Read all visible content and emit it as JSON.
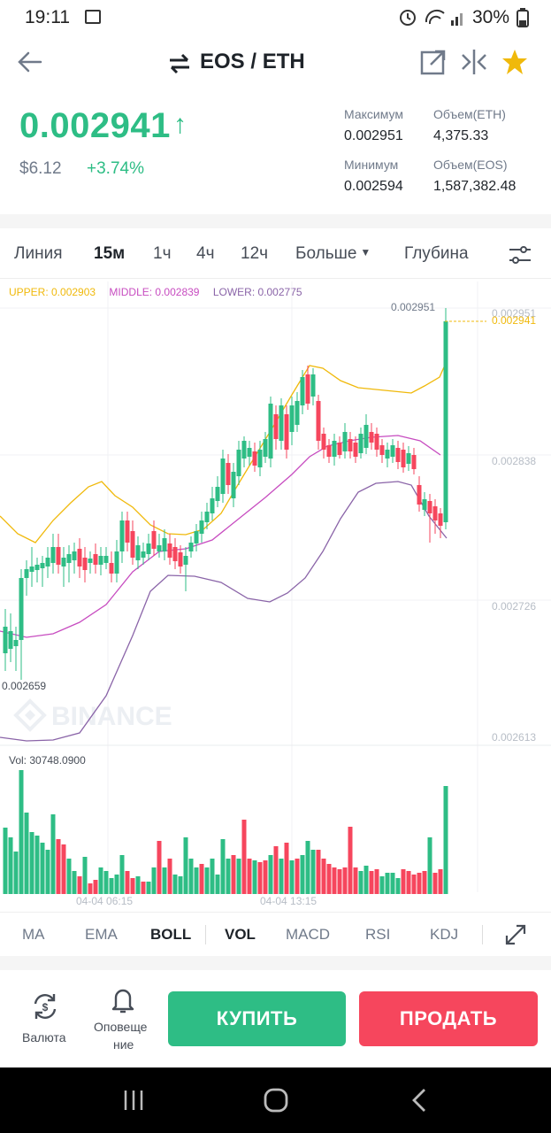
{
  "status_bar": {
    "time": "19:11",
    "battery": "30%"
  },
  "header": {
    "title": "EOS / ETH",
    "swap_icon": "swap-arrows-icon",
    "back_icon": "arrow-left-icon",
    "share_icon": "share-icon",
    "compare_icon": "compare-icon",
    "favorite_icon": "star-icon",
    "favorite_color": "#f0b90b"
  },
  "price": {
    "last": "0.002941",
    "usd": "$6.12",
    "change": "+3.74%",
    "up_color": "#2ebd85",
    "down_color": "#f6465d"
  },
  "stats": [
    {
      "label": "Максимум",
      "value": "0.002951"
    },
    {
      "label": "Объем(ETH)",
      "value": "4,375.33"
    },
    {
      "label": "Минимум",
      "value": "0.002594"
    },
    {
      "label": "Объем(EOS)",
      "value": "1,587,382.48"
    }
  ],
  "tabs": [
    {
      "label": "Линия",
      "active": false
    },
    {
      "label": "15м",
      "active": true
    },
    {
      "label": "1ч",
      "active": false
    },
    {
      "label": "4ч",
      "active": false
    },
    {
      "label": "12ч",
      "active": false
    },
    {
      "label": "Больше",
      "active": false
    },
    {
      "label": "Глубина",
      "active": false
    }
  ],
  "boll": {
    "upper": "UPPER: 0.002903",
    "middle": "MIDDLE: 0.002839",
    "lower": "LOWER: 0.002775",
    "upper_color": "#f0b90b",
    "middle_color": "#c74cc0",
    "lower_color": "#8a64a8"
  },
  "chart": {
    "y_labels": [
      "0.002951",
      "0.002838",
      "0.002726",
      "0.002613"
    ],
    "high_label": "0.002951",
    "last_label": "0.002941",
    "low_label": "0.002659",
    "watermark": "BINANCE",
    "x_labels": [
      "04-04 06:15",
      "04-04 13:15"
    ],
    "vol_label": "Vol: 30748.0900"
  },
  "indicators": [
    {
      "label": "MA",
      "active": false
    },
    {
      "label": "EMA",
      "active": false
    },
    {
      "label": "BOLL",
      "active": true
    },
    {
      "label": "VOL",
      "active": true
    },
    {
      "label": "MACD",
      "active": false
    },
    {
      "label": "RSI",
      "active": false
    },
    {
      "label": "KDJ",
      "active": false
    }
  ],
  "bottom": {
    "currency_label": "Валюта",
    "alert_label_1": "Оповеще",
    "alert_label_2": "ние",
    "buy": "КУПИТЬ",
    "sell": "ПРОДАТЬ"
  }
}
